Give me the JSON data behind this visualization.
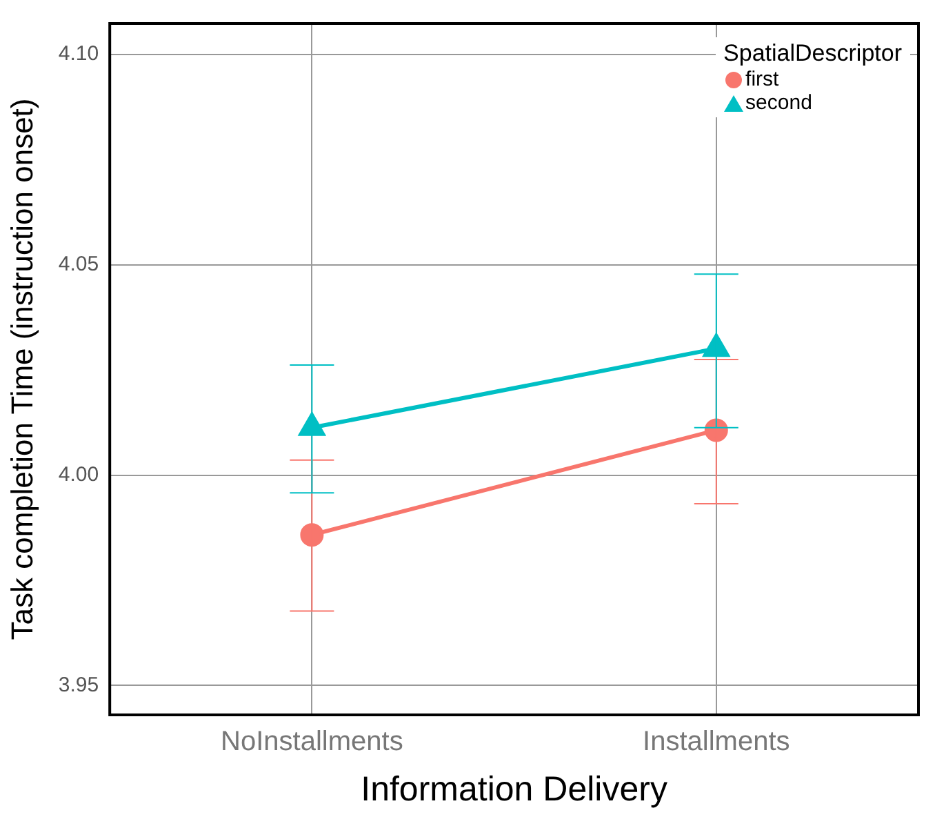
{
  "chart_data": {
    "type": "line",
    "xlabel": "Information Delivery",
    "ylabel": "Task completion Time (instruction onset)",
    "legend_title": "SpatialDescriptor",
    "categories": [
      "NoInstallments",
      "Installments"
    ],
    "series": [
      {
        "name": "first",
        "color": "#f8766d",
        "marker": "circle",
        "values": [
          3.9858,
          4.0107
        ],
        "errors": [
          [
            3.9677,
            4.0036
          ],
          [
            3.9932,
            4.0275
          ]
        ]
      },
      {
        "name": "second",
        "color": "#00bfc4",
        "marker": "triangle",
        "values": [
          4.0113,
          4.0301
        ],
        "errors": [
          [
            3.9958,
            4.0262
          ],
          [
            4.0113,
            4.0478
          ]
        ]
      }
    ],
    "ylim": [
      3.943,
      4.1074
    ],
    "yticks": [
      3.95,
      {
        "value": 4.0,
        "label": "4.00"
      },
      4.05,
      {
        "value": 4.1,
        "label": "4.10"
      }
    ],
    "grid": true,
    "legend": "top right"
  }
}
